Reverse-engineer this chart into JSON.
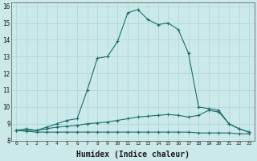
{
  "xlabel": "Humidex (Indice chaleur)",
  "background_color": "#cce9e9",
  "grid_color": "#a8d5d5",
  "line_color": "#1a6e6a",
  "xlim": [
    -0.5,
    23.5
  ],
  "ylim": [
    8.0,
    16.2
  ],
  "x": [
    0,
    1,
    2,
    3,
    4,
    5,
    6,
    7,
    8,
    9,
    10,
    11,
    12,
    13,
    14,
    15,
    16,
    17,
    18,
    19,
    20,
    21,
    22,
    23
  ],
  "line1": [
    8.6,
    8.7,
    8.6,
    8.8,
    9.0,
    9.2,
    9.3,
    11.0,
    12.9,
    13.0,
    13.9,
    15.6,
    15.8,
    15.2,
    14.9,
    15.0,
    14.6,
    13.2,
    10.0,
    9.9,
    9.8,
    9.0,
    8.7,
    8.5
  ],
  "line2": [
    8.6,
    8.6,
    8.6,
    8.7,
    8.8,
    8.85,
    8.9,
    9.0,
    9.05,
    9.1,
    9.2,
    9.3,
    9.4,
    9.45,
    9.5,
    9.55,
    9.5,
    9.4,
    9.5,
    9.8,
    9.7,
    9.0,
    8.7,
    8.5
  ],
  "line3": [
    8.6,
    8.55,
    8.5,
    8.5,
    8.5,
    8.5,
    8.5,
    8.5,
    8.5,
    8.5,
    8.5,
    8.5,
    8.5,
    8.5,
    8.5,
    8.5,
    8.5,
    8.5,
    8.45,
    8.45,
    8.45,
    8.45,
    8.4,
    8.4
  ]
}
